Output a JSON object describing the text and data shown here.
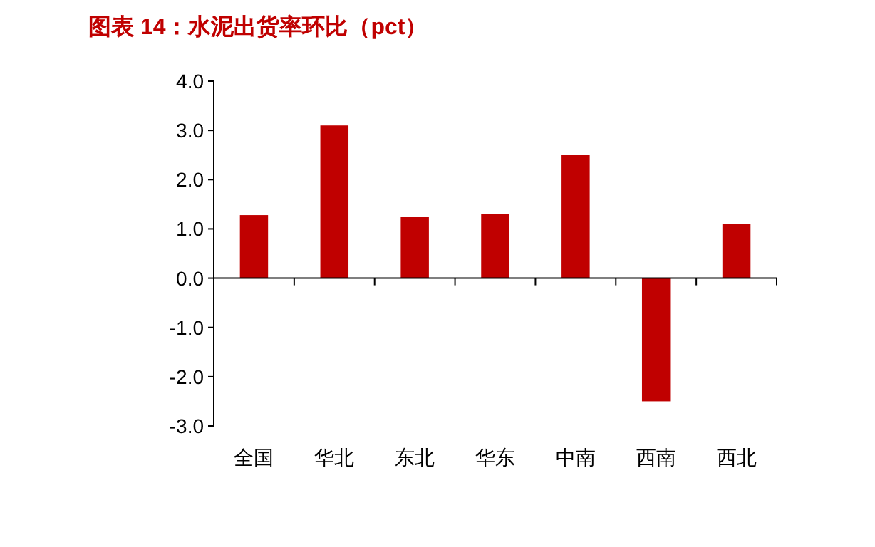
{
  "chart_data": {
    "type": "bar",
    "title": "图表 14：水泥出货率环比（pct）",
    "categories": [
      "全国",
      "华北",
      "东北",
      "华东",
      "中南",
      "西南",
      "西北"
    ],
    "values": [
      1.28,
      3.1,
      1.25,
      1.3,
      2.5,
      -2.5,
      1.1
    ],
    "color": "#c00000",
    "ylim": [
      -3,
      4
    ],
    "yticks": [
      {
        "value": 4,
        "label": "4.0"
      },
      {
        "value": 3,
        "label": "3.0"
      },
      {
        "value": 2,
        "label": "2.0"
      },
      {
        "value": 1,
        "label": "1.0"
      },
      {
        "value": 0,
        "label": "0.0"
      },
      {
        "value": -1,
        "label": "-1.0"
      },
      {
        "value": -2,
        "label": "-2.0"
      },
      {
        "value": -3,
        "label": "-3.0"
      }
    ]
  }
}
